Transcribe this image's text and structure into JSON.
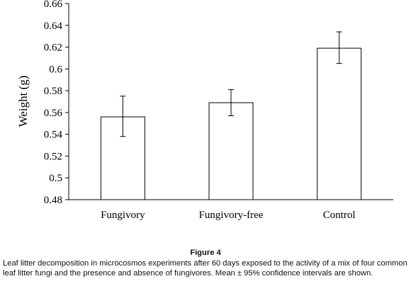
{
  "chart_data": {
    "type": "bar",
    "categories": [
      "Fungivory",
      "Fungivory-free",
      "Control"
    ],
    "values": [
      0.556,
      0.569,
      0.619
    ],
    "error_bars": {
      "lower": [
        0.538,
        0.557,
        0.605
      ],
      "upper": [
        0.575,
        0.581,
        0.634
      ]
    },
    "title": "",
    "xlabel": "",
    "ylabel": "Weight (g)",
    "ylim": [
      0.48,
      0.66
    ],
    "yticks": [
      0.48,
      0.5,
      0.52,
      0.54,
      0.56,
      0.58,
      0.6,
      0.62,
      0.64,
      0.66
    ],
    "ytick_labels": [
      "0.48",
      "0.5",
      "0.52",
      "0.54",
      "0.56",
      "0.58",
      "0.6",
      "0.62",
      "0.64",
      "0.66"
    ],
    "grid": false,
    "legend": "none",
    "bar_fill": "#ffffff",
    "bar_stroke": "#000000"
  },
  "figure": {
    "label": "Figure 4",
    "caption": "Leaf litter decomposition in microcosmos experiments after 60 days exposed to the activity of a mix of four common leaf litter fungi and the presence and absence of fungivores. Mean ± 95% confidence intervals are shown."
  }
}
